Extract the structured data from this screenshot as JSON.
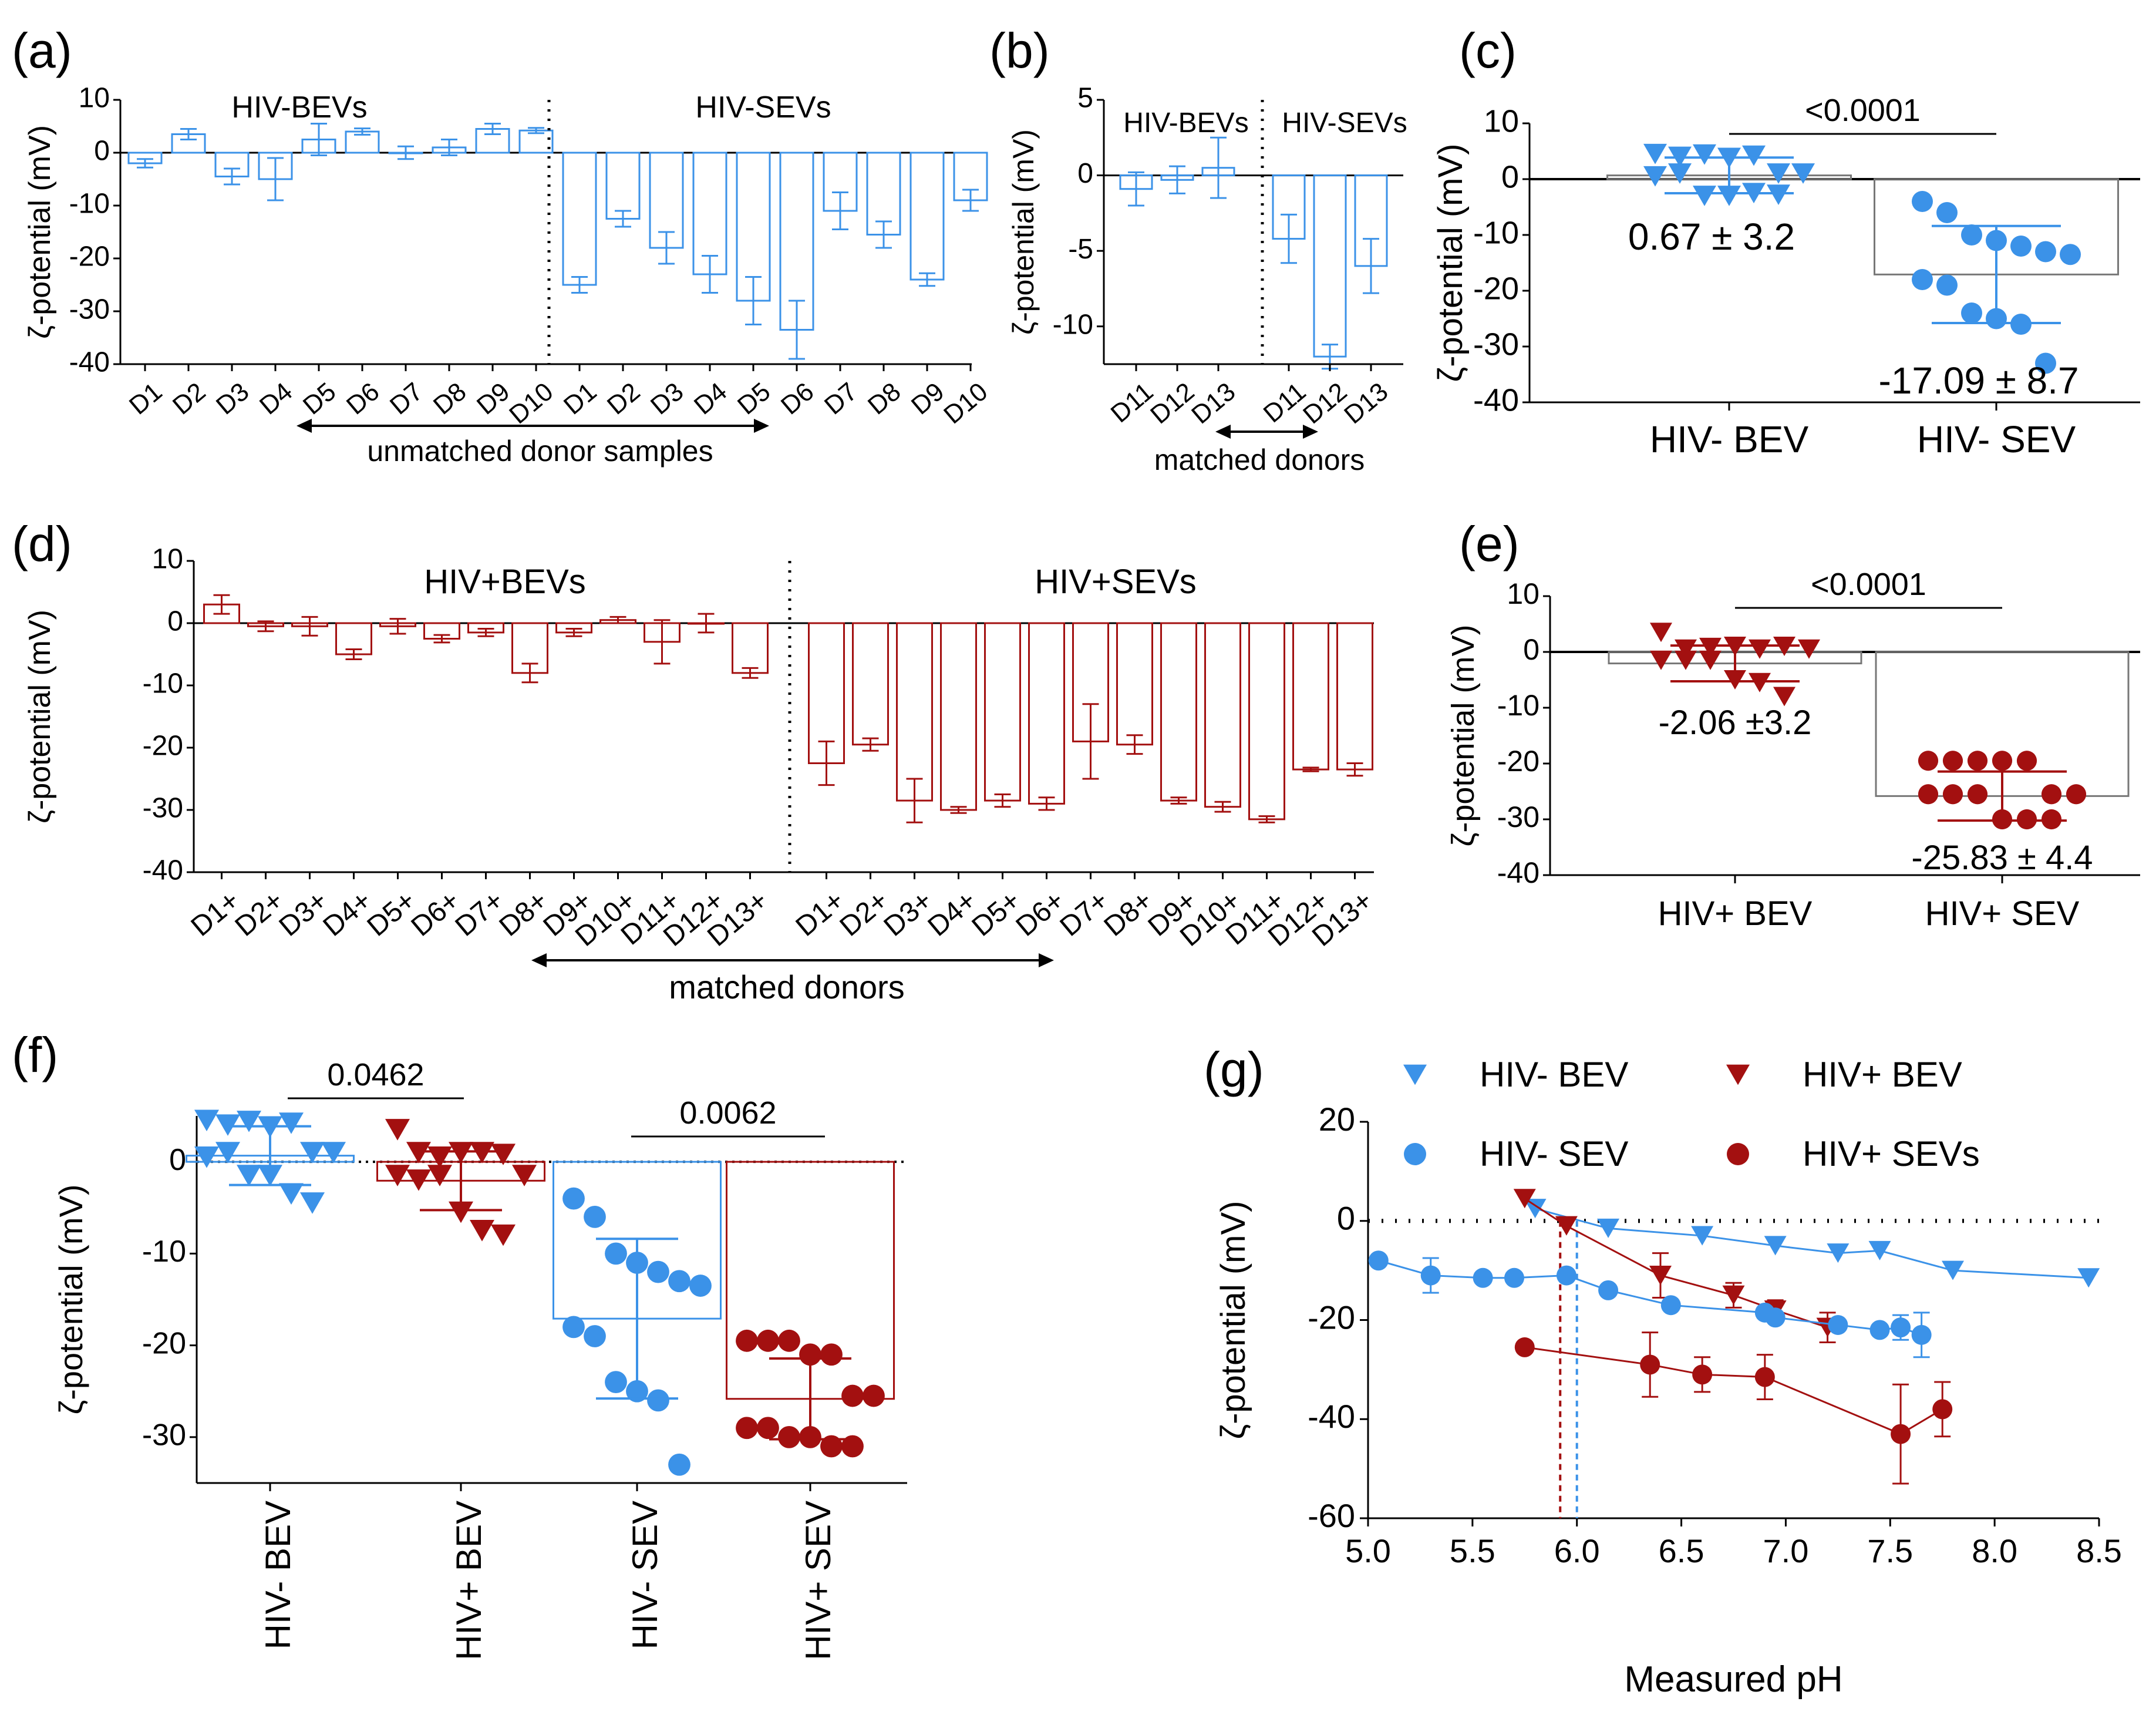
{
  "colors": {
    "blue": "#3b92e8",
    "red": "#a31010",
    "axis": "#000000"
  },
  "chart_data": [
    {
      "panel": "(a)",
      "type": "bar",
      "ylabel": "ζ-potential (mV)",
      "ylim": [
        -40,
        10
      ],
      "yticks": [
        10,
        0,
        -10,
        -20,
        -30,
        -40
      ],
      "groups": [
        {
          "name": "HIV-BEVs",
          "categories": [
            "D1",
            "D2",
            "D3",
            "D4",
            "D5",
            "D6",
            "D7",
            "D8",
            "D9",
            "D10"
          ],
          "values": [
            -2,
            3.5,
            -4.5,
            -5,
            2.5,
            4,
            0,
            1,
            4.5,
            4.2
          ],
          "errors": [
            0.8,
            1,
            1.5,
            4,
            3,
            0.6,
            1.2,
            1.5,
            1,
            0.5
          ]
        },
        {
          "name": "HIV-SEVs",
          "categories": [
            "D1",
            "D2",
            "D3",
            "D4",
            "D5",
            "D6",
            "D7",
            "D8",
            "D9",
            "D10"
          ],
          "values": [
            -25,
            -12.5,
            -18,
            -23,
            -28,
            -33.5,
            -11,
            -15.5,
            -24,
            -9
          ],
          "errors": [
            1.5,
            1.5,
            3,
            3.5,
            4.5,
            5.5,
            3.5,
            2.5,
            1.2,
            2
          ]
        }
      ],
      "annotation": "unmatched donor samples"
    },
    {
      "panel": "(b)",
      "type": "bar",
      "ylabel": "ζ-potential (mV)",
      "ylim": [
        -12.5,
        5
      ],
      "yticks": [
        5,
        0,
        -5,
        -10
      ],
      "groups": [
        {
          "name": "HIV-BEVs",
          "categories": [
            "D11",
            "D12",
            "D13"
          ],
          "values": [
            -0.9,
            -0.3,
            0.5
          ],
          "errors": [
            1.1,
            0.9,
            2
          ]
        },
        {
          "name": "HIV-SEVs",
          "categories": [
            "D11",
            "D12",
            "D13"
          ],
          "values": [
            -4.2,
            -12,
            -6
          ],
          "errors": [
            1.6,
            0.8,
            1.8
          ]
        }
      ],
      "annotation": "matched donors"
    },
    {
      "panel": "(c)",
      "type": "scatter",
      "ylabel": "ζ-potential (mV)",
      "ylim": [
        -40,
        10
      ],
      "yticks": [
        10,
        0,
        -10,
        -20,
        -30,
        -40
      ],
      "categories": [
        "HIV- BEV",
        "HIV- SEV"
      ],
      "means": [
        0.67,
        -17.09
      ],
      "sds": [
        3.2,
        8.7
      ],
      "labels": [
        "0.67 ± 3.2",
        "-17.09 ± 8.7"
      ],
      "points": [
        [
          4.5,
          4,
          4.4,
          3.8,
          4.2,
          1,
          1,
          0.5,
          1,
          -3,
          -3,
          -2.5,
          -2.8
        ],
        [
          -4,
          -6,
          -10,
          -11,
          -12,
          -13,
          -13.5,
          -18,
          -19,
          -24,
          -25,
          -26,
          -33
        ]
      ],
      "p_value": "<0.0001"
    },
    {
      "panel": "(d)",
      "type": "bar",
      "ylabel": "ζ-potential (mV)",
      "ylim": [
        -40,
        10
      ],
      "yticks": [
        10,
        0,
        -10,
        -20,
        -30,
        -40
      ],
      "groups": [
        {
          "name": "HIV+BEVs",
          "categories": [
            "D1+",
            "D2+",
            "D3+",
            "D4+",
            "D5+",
            "D6+",
            "D7+",
            "D8+",
            "D9+",
            "D10+",
            "D11+",
            "D12+",
            "D13+"
          ],
          "values": [
            3,
            -0.5,
            -0.5,
            -5,
            -0.5,
            -2.5,
            -1.5,
            -8,
            -1.5,
            0.5,
            -3,
            0,
            -8
          ],
          "errors": [
            1.5,
            0.8,
            1.5,
            0.8,
            1.2,
            0.6,
            0.6,
            1.5,
            0.6,
            0.5,
            3.5,
            1.5,
            0.8
          ]
        },
        {
          "name": "HIV+SEVs",
          "categories": [
            "D1+",
            "D2+",
            "D3+",
            "D4+",
            "D5+",
            "D6+",
            "D7+",
            "D8+",
            "D9+",
            "D10+",
            "D11+",
            "D12+",
            "D13+"
          ],
          "values": [
            -22.5,
            -19.5,
            -28.5,
            -30,
            -28.5,
            -29,
            -19,
            -19.5,
            -28.5,
            -29.5,
            -31.5,
            -23.5,
            -23.5
          ],
          "errors": [
            3.5,
            1,
            3.5,
            0.5,
            1,
            1,
            6,
            1.5,
            0.5,
            0.8,
            0.5,
            0.3,
            1
          ]
        }
      ],
      "annotation": "matched donors"
    },
    {
      "panel": "(e)",
      "type": "scatter",
      "ylabel": "ζ-potential (mV)",
      "ylim": [
        -40,
        10
      ],
      "yticks": [
        10,
        0,
        -10,
        -20,
        -30,
        -40
      ],
      "categories": [
        "HIV+ BEV",
        "HIV+ SEV"
      ],
      "means": [
        -2.06,
        -25.83
      ],
      "sds": [
        3.2,
        4.4
      ],
      "labels": [
        "-2.06 ±3.2",
        "-25.83 ± 4.4"
      ],
      "points": [
        [
          3.5,
          0.5,
          0.8,
          1,
          0.5,
          1,
          0.5,
          -1.5,
          -1.5,
          -1.5,
          -5,
          -5.5,
          -8
        ],
        [
          -19.5,
          -19.5,
          -19.5,
          -19.5,
          -19.5,
          -25.5,
          -25.5,
          -25.5,
          -25.5,
          -25.5,
          -30,
          -30,
          -30
        ]
      ],
      "p_value": "<0.0001"
    },
    {
      "panel": "(f)",
      "type": "scatter",
      "ylabel": "ζ-potential (mV)",
      "ylim": [
        -35,
        5
      ],
      "yticks": [
        0,
        -10,
        -20,
        -30
      ],
      "categories": [
        "HIV- BEV",
        "HIV+ BEV",
        "HIV- SEV",
        "HIV+ SEV"
      ],
      "means": [
        0.67,
        -2.06,
        -17.09,
        -25.83
      ],
      "sds": [
        3.2,
        3.2,
        8.7,
        4.4
      ],
      "points": [
        [
          4.5,
          4,
          4.4,
          3.8,
          4.2,
          1,
          1,
          0.5,
          1,
          -1.5,
          -1.5,
          -3.5,
          -4.5
        ],
        [
          3.5,
          1,
          0.5,
          1,
          1,
          0.8,
          -1.5,
          -1.5,
          -2,
          -1.5,
          -5.5,
          -7.5,
          -8
        ],
        [
          -4,
          -6,
          -10,
          -11,
          -12,
          -13,
          -13.5,
          -18,
          -19,
          -24,
          -25,
          -26,
          -33
        ],
        [
          -19.5,
          -19.5,
          -19.5,
          -21,
          -21,
          -25.5,
          -25.5,
          -29,
          -29,
          -30,
          -30,
          -31,
          -31
        ]
      ],
      "comparisons": [
        {
          "between": [
            "HIV- BEV",
            "HIV+ BEV"
          ],
          "p_value": "0.0462"
        },
        {
          "between": [
            "HIV- SEV",
            "HIV+ SEV"
          ],
          "p_value": "0.0062"
        }
      ]
    },
    {
      "panel": "(g)",
      "type": "line",
      "xlabel": "Measured pH",
      "ylabel": "ζ-potential (mV)",
      "xlim": [
        5.0,
        8.5
      ],
      "ylim": [
        -60,
        20
      ],
      "xticks": [
        "5.0",
        "5.5",
        "6.0",
        "6.5",
        "7.0",
        "7.5",
        "8.0",
        "8.5"
      ],
      "yticks": [
        20,
        0,
        -20,
        -40,
        -60
      ],
      "series": [
        {
          "name": "HIV- BEV",
          "marker": "triangle-down",
          "color": "blue",
          "x": [
            5.8,
            6.15,
            6.6,
            6.95,
            7.25,
            7.45,
            7.8,
            8.45
          ],
          "y": [
            2.5,
            -1.5,
            -3,
            -5,
            -6.5,
            -6,
            -10,
            -11.5
          ],
          "err": [
            0,
            0,
            0,
            0,
            0,
            0,
            0,
            0
          ]
        },
        {
          "name": "HIV+ BEV",
          "marker": "triangle-down",
          "color": "red",
          "x": [
            5.75,
            5.95,
            6.4,
            6.75,
            6.95,
            7.2
          ],
          "y": [
            4.5,
            -1,
            -11,
            -15,
            -18,
            -21.5
          ],
          "err": [
            0,
            0,
            4.5,
            2.5,
            2,
            3
          ]
        },
        {
          "name": "HIV- SEV",
          "marker": "circle",
          "color": "blue",
          "x": [
            5.05,
            5.3,
            5.55,
            5.7,
            5.95,
            6.15,
            6.45,
            6.9,
            6.95,
            7.25,
            7.45,
            7.55,
            7.65
          ],
          "y": [
            -8,
            -11,
            -11.5,
            -11.5,
            -11,
            -14,
            -17,
            -18.5,
            -19.5,
            -21,
            -22,
            -21.5,
            -23
          ],
          "err": [
            0,
            3.5,
            0,
            0,
            0,
            0,
            0,
            0,
            0,
            0,
            0,
            2.5,
            4.5
          ]
        },
        {
          "name": "HIV+ SEVs",
          "marker": "circle",
          "color": "red",
          "x": [
            5.75,
            6.35,
            6.6,
            6.9,
            7.55,
            7.75
          ],
          "y": [
            -25.5,
            -29,
            -31,
            -31.5,
            -43,
            -38
          ],
          "err": [
            0,
            6.5,
            3.5,
            4.5,
            10,
            5.5
          ]
        }
      ],
      "vlines": [
        {
          "x": 5.92,
          "color": "red"
        },
        {
          "x": 6.0,
          "color": "blue"
        }
      ]
    }
  ]
}
